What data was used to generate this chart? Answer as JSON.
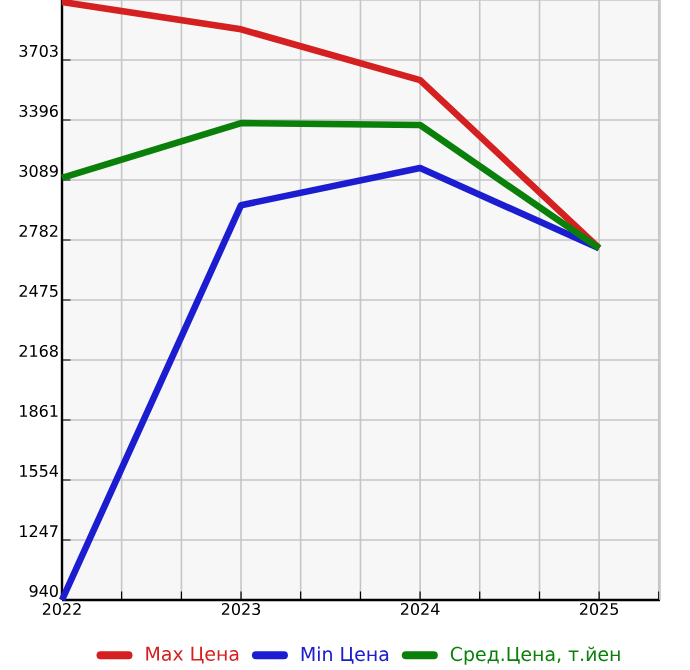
{
  "chart_data": {
    "type": "line",
    "x": [
      2022,
      2023,
      2024,
      2025
    ],
    "series": [
      {
        "name": "Max Цена",
        "color": "#d42020",
        "values": [
          4000,
          3860,
          3600,
          2740
        ]
      },
      {
        "name": "Min Цена",
        "color": "#1c1cd0",
        "values": [
          940,
          2960,
          3150,
          2740
        ]
      },
      {
        "name": "Сред.Цена, т.йен",
        "color": "#0a800a",
        "values": [
          3100,
          3380,
          3370,
          2740
        ]
      }
    ],
    "xlim": [
      2022,
      2025.34
    ],
    "ylim": [
      940,
      4010
    ],
    "xticks": [
      2022,
      {
        "value": 2022.333,
        "label": null
      },
      {
        "value": 2022.667,
        "label": null
      },
      2023,
      {
        "value": 2023.333,
        "label": null
      },
      {
        "value": 2023.667,
        "label": null
      },
      2024,
      {
        "value": 2024.333,
        "label": null
      },
      {
        "value": 2024.667,
        "label": null
      },
      2025,
      {
        "value": 2025.333,
        "label": null
      }
    ],
    "yticks": [
      940,
      1247,
      1554,
      1861,
      2168,
      2475,
      2782,
      3089,
      3396,
      3703
    ],
    "grid": true,
    "legend": "bottom",
    "marker": "none",
    "line_style": "solid"
  }
}
